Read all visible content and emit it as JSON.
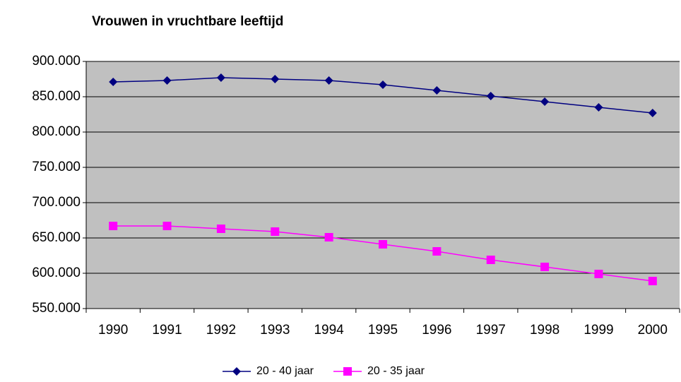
{
  "chart_data": {
    "type": "line",
    "title": "Vrouwen in vruchtbare leeftijd",
    "categories": [
      "1990",
      "1991",
      "1992",
      "1993",
      "1994",
      "1995",
      "1996",
      "1997",
      "1998",
      "1999",
      "2000"
    ],
    "series": [
      {
        "name": "20 - 40 jaar",
        "color": "#000080",
        "marker": "diamond",
        "values": [
          871000,
          873000,
          877000,
          875000,
          873000,
          867000,
          859000,
          851000,
          843000,
          835000,
          827000
        ]
      },
      {
        "name": "20 - 35 jaar",
        "color": "#ff00ff",
        "marker": "square",
        "values": [
          667000,
          667000,
          663000,
          659000,
          651000,
          641000,
          631000,
          619000,
          609000,
          599000,
          589000
        ]
      }
    ],
    "ylim": [
      550000,
      900000
    ],
    "yticks": [
      {
        "value": 550000,
        "label": "550.000"
      },
      {
        "value": 600000,
        "label": "600.000"
      },
      {
        "value": 650000,
        "label": "650.000"
      },
      {
        "value": 700000,
        "label": "700.000"
      },
      {
        "value": 750000,
        "label": "750.000"
      },
      {
        "value": 800000,
        "label": "800.000"
      },
      {
        "value": 850000,
        "label": "850.000"
      },
      {
        "value": 900000,
        "label": "900.000"
      }
    ],
    "grid": true,
    "legend": "bottom"
  }
}
